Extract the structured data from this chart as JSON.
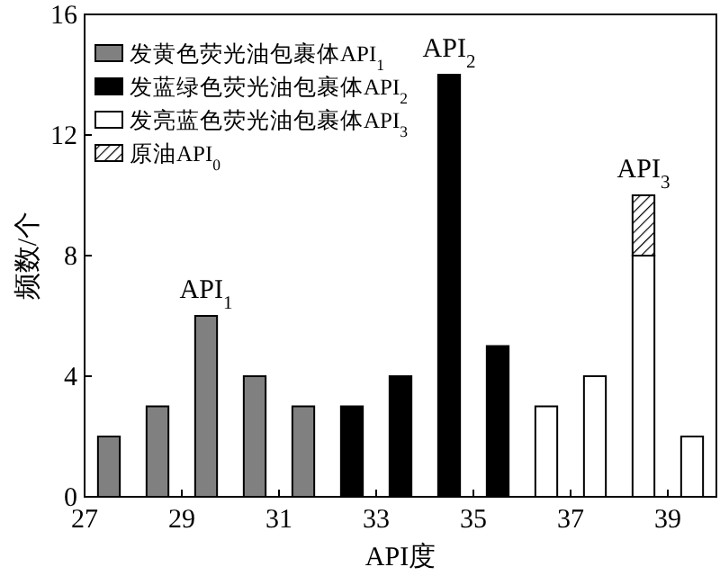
{
  "chart_data": {
    "type": "bar",
    "stacked": true,
    "xlabel": "API度",
    "ylabel": "频数/个",
    "legend": "top left",
    "x": [
      27.5,
      28.5,
      29.5,
      30.5,
      31.5,
      32.5,
      33.5,
      34.5,
      35.5,
      36.5,
      37.5,
      38.5,
      39.5
    ],
    "series": [
      {
        "name": "发黄色荧光油包裹体API$_{1}$",
        "color": "#808080",
        "values": [
          2,
          3,
          6,
          4,
          3,
          null,
          null,
          null,
          null,
          null,
          null,
          null,
          null
        ]
      },
      {
        "name": "发蓝绿色荧光油包裹体API$_{2}$",
        "color": "#000000",
        "values": [
          null,
          null,
          null,
          null,
          null,
          3,
          4,
          14,
          5,
          null,
          null,
          null,
          null
        ]
      },
      {
        "name": "发亮蓝色荧光油包裹体API$_{3}$",
        "color": "#ffffff",
        "values": [
          null,
          null,
          null,
          null,
          null,
          null,
          null,
          null,
          null,
          3,
          4,
          8,
          2
        ]
      },
      {
        "name": "原油API$_{0}$",
        "color": "#000000",
        "values": [
          null,
          null,
          null,
          null,
          null,
          null,
          null,
          null,
          null,
          null,
          null,
          2,
          null
        ]
      }
    ],
    "xlim": [
      27,
      40
    ],
    "ylim": [
      0,
      16
    ],
    "xticks": [
      27,
      29,
      31,
      33,
      35,
      37,
      39
    ],
    "yticks": [
      0,
      4,
      8,
      12,
      16
    ],
    "annotations": [
      "API$_{1}$",
      "API$_{2}$",
      "API$_{3}$"
    ]
  }
}
